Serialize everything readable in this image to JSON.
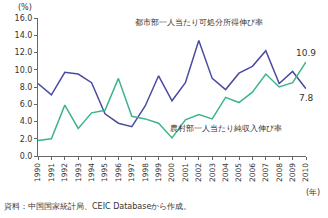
{
  "chart_data": {
    "type": "line",
    "y_label": "(%)",
    "x_label": "(年)",
    "source": "資料：中国国家統計局、CEIC Databaseから作成。",
    "x": [
      1990,
      1991,
      1992,
      1993,
      1994,
      1995,
      1996,
      1997,
      1998,
      1999,
      2000,
      2001,
      2002,
      2003,
      2004,
      2005,
      2006,
      2007,
      2008,
      2009,
      2010
    ],
    "series": [
      {
        "name": "都市部一人当たり可処分所得伸び率",
        "color": "#4b4ba0",
        "values": [
          8.4,
          7.1,
          9.7,
          9.5,
          8.5,
          4.9,
          3.8,
          3.4,
          5.8,
          9.3,
          6.4,
          8.5,
          13.4,
          9.0,
          7.7,
          9.6,
          10.4,
          12.2,
          8.4,
          9.8,
          7.8
        ],
        "value_labels": [
          null,
          null,
          null,
          null,
          null,
          null,
          null,
          null,
          null,
          null,
          null,
          null,
          null,
          null,
          null,
          null,
          null,
          null,
          null,
          null,
          "7.8"
        ]
      },
      {
        "name": "農村部一人当たり純収入伸び率",
        "color": "#3cb48c",
        "values": [
          1.8,
          2.0,
          5.9,
          3.2,
          5.0,
          5.3,
          9.0,
          4.6,
          4.3,
          3.8,
          2.1,
          4.2,
          4.8,
          4.3,
          6.8,
          6.2,
          7.4,
          9.5,
          8.0,
          8.5,
          10.9
        ],
        "value_labels": [
          null,
          null,
          null,
          null,
          null,
          null,
          null,
          null,
          null,
          null,
          null,
          null,
          null,
          null,
          null,
          null,
          null,
          null,
          null,
          null,
          "10.9"
        ]
      }
    ],
    "xlim": [
      1990,
      2010
    ],
    "xticks": [
      1990,
      1991,
      1992,
      1993,
      1994,
      1995,
      1996,
      1997,
      1998,
      1999,
      2000,
      2001,
      2002,
      2003,
      2004,
      2005,
      2006,
      2007,
      2008,
      2009,
      2010
    ],
    "ylim": [
      0,
      16
    ],
    "yticks": [
      {
        "value": 0,
        "label": "0.0"
      },
      {
        "value": 2,
        "label": "2.0"
      },
      {
        "value": 4,
        "label": "4.0"
      },
      {
        "value": 6,
        "label": "6.0"
      },
      {
        "value": 8,
        "label": "8.0"
      },
      {
        "value": 10,
        "label": "10.0"
      },
      {
        "value": 12,
        "label": "12.0"
      },
      {
        "value": 14,
        "label": "14.0"
      },
      {
        "value": 16,
        "label": "16.0"
      }
    ],
    "grid": false
  }
}
